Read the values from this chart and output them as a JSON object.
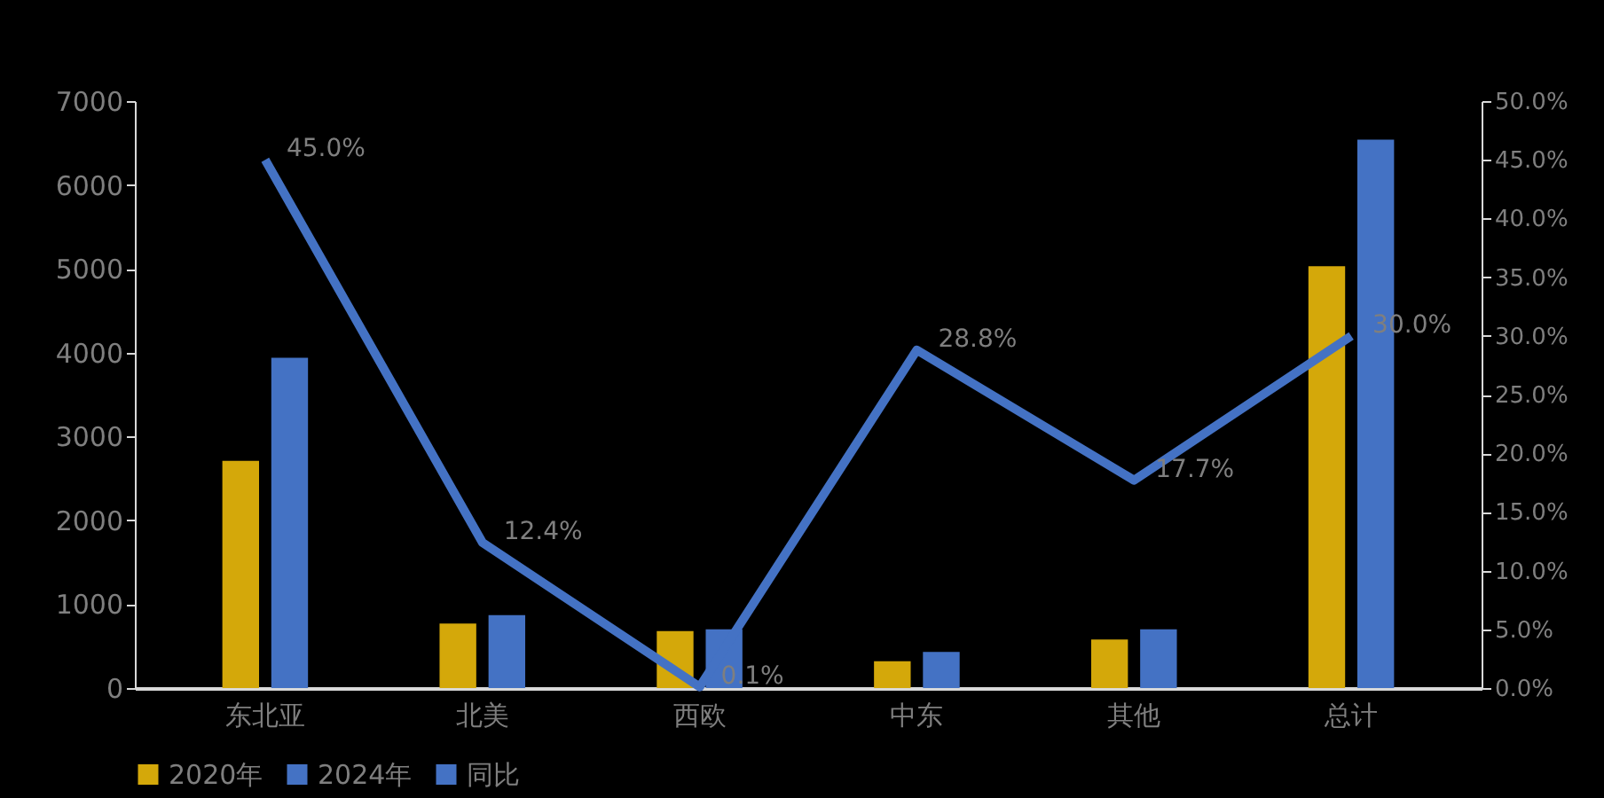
{
  "chart_data": {
    "type": "bar",
    "categories": [
      "东北亚",
      "北美",
      "西欧",
      "中东",
      "其他",
      "总计"
    ],
    "series": [
      {
        "name": "2020年",
        "color": "#d4a80a",
        "values": [
          2710,
          770,
          680,
          320,
          580,
          5030
        ]
      },
      {
        "name": "2024年",
        "color": "#4472c4",
        "values": [
          3940,
          870,
          700,
          430,
          700,
          6540
        ]
      },
      {
        "name": "同比",
        "type": "line",
        "axis": "y2",
        "color": "#4472c4",
        "values": [
          45.0,
          12.4,
          0.1,
          28.8,
          17.7,
          30.0
        ],
        "value_labels": [
          "45.0%",
          "12.4%",
          "0.1%",
          "28.8%",
          "17.7%",
          "30.0%"
        ]
      }
    ],
    "ylim": [
      0,
      7000
    ],
    "yticks": [
      0,
      1000,
      2000,
      3000,
      4000,
      5000,
      6000,
      7000
    ],
    "y2lim": [
      0,
      50
    ],
    "y2ticks": [
      {
        "value": 0,
        "label": "0.0%"
      },
      {
        "value": 5,
        "label": "5.0%"
      },
      {
        "value": 10,
        "label": "10.0%"
      },
      {
        "value": 15,
        "label": "15.0%"
      },
      {
        "value": 20,
        "label": "20.0%"
      },
      {
        "value": 25,
        "label": "25.0%"
      },
      {
        "value": 30,
        "label": "30.0%"
      },
      {
        "value": 35,
        "label": "35.0%"
      },
      {
        "value": 40,
        "label": "40.0%"
      },
      {
        "value": 45,
        "label": "45.0%"
      },
      {
        "value": 50,
        "label": "50.0%"
      }
    ],
    "legend": "bottom",
    "grid": false
  }
}
